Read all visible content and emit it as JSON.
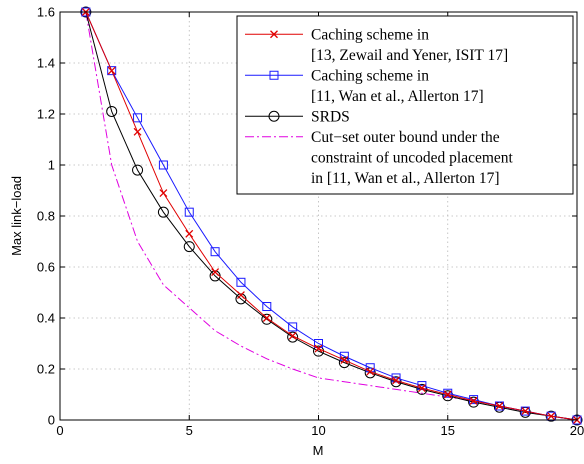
{
  "chart_data": {
    "type": "line",
    "title": "",
    "xlabel": "M",
    "ylabel": "Max link−load",
    "xlim": [
      0,
      20
    ],
    "ylim": [
      0,
      1.6
    ],
    "xticks": [
      0,
      5,
      10,
      15,
      20
    ],
    "yticks": [
      0,
      0.2,
      0.4,
      0.6,
      0.8,
      1,
      1.2,
      1.4,
      1.6
    ],
    "grid": true,
    "legend_position": "top-right",
    "series": [
      {
        "name": "Caching scheme in [13, Zewail and Yener, ISIT 17]",
        "legend_lines": [
          "Caching scheme in",
          "[13, Zewail and Yener, ISIT 17]"
        ],
        "color": "#e00000",
        "line_style": "solid",
        "marker": "x",
        "x": [
          1,
          2,
          3,
          4,
          5,
          6,
          7,
          8,
          9,
          10,
          11,
          12,
          13,
          14,
          15,
          16,
          17,
          18,
          19,
          20
        ],
        "y": [
          1.6,
          1.37,
          1.13,
          0.89,
          0.73,
          0.58,
          0.49,
          0.4,
          0.33,
          0.28,
          0.235,
          0.19,
          0.155,
          0.125,
          0.1,
          0.075,
          0.055,
          0.035,
          0.015,
          0
        ]
      },
      {
        "name": "Caching scheme in [11, Wan et al., Allerton 17]",
        "legend_lines": [
          "Caching scheme in",
          "[11, Wan et al., Allerton 17]"
        ],
        "color": "#1a1aff",
        "line_style": "solid",
        "marker": "square",
        "x": [
          1,
          2,
          3,
          4,
          5,
          6,
          7,
          8,
          9,
          10,
          11,
          12,
          13,
          14,
          15,
          16,
          17,
          18,
          19,
          20
        ],
        "y": [
          1.6,
          1.37,
          1.185,
          1.0,
          0.815,
          0.66,
          0.54,
          0.445,
          0.365,
          0.3,
          0.25,
          0.205,
          0.165,
          0.135,
          0.105,
          0.08,
          0.055,
          0.035,
          0.015,
          0
        ]
      },
      {
        "name": "SRDS",
        "legend_lines": [
          "SRDS"
        ],
        "color": "#000000",
        "line_style": "solid",
        "marker": "circle",
        "x": [
          1,
          2,
          3,
          4,
          5,
          6,
          7,
          8,
          9,
          10,
          11,
          12,
          13,
          14,
          15,
          16,
          17,
          18,
          19,
          20
        ],
        "y": [
          1.6,
          1.21,
          0.98,
          0.815,
          0.68,
          0.565,
          0.475,
          0.395,
          0.325,
          0.27,
          0.225,
          0.185,
          0.15,
          0.12,
          0.095,
          0.07,
          0.05,
          0.03,
          0.015,
          0
        ]
      },
      {
        "name": "Cut−set outer bound under the constraint of uncoded placement in [11, Wan et al., Allerton 17]",
        "legend_lines": [
          "Cut−set outer bound under the",
          "constraint of uncoded placement",
          "in [11, Wan et al., Allerton 17]"
        ],
        "color": "#e000e0",
        "line_style": "dashdot",
        "marker": "none",
        "x": [
          1,
          2,
          3,
          4,
          5,
          6,
          7,
          8,
          9,
          10,
          11,
          12,
          13,
          14,
          15,
          16,
          17,
          18,
          19,
          20
        ],
        "y": [
          1.6,
          1.0,
          0.7,
          0.53,
          0.44,
          0.35,
          0.29,
          0.24,
          0.2,
          0.165,
          0.15,
          0.135,
          0.12,
          0.105,
          0.09,
          0.075,
          0.055,
          0.035,
          0.015,
          0
        ]
      }
    ]
  }
}
